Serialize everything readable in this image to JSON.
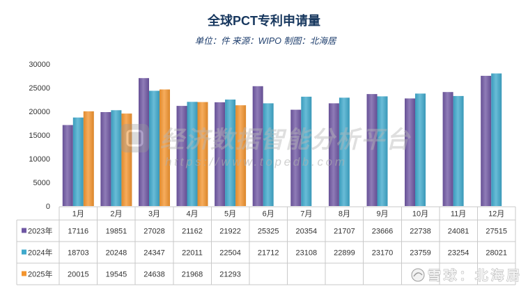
{
  "chart_data": {
    "type": "bar",
    "title": "全球PCT专利申请量",
    "subtitle": "单位：件 来源：WIPO 制图：北海居",
    "categories": [
      "1月",
      "2月",
      "3月",
      "4月",
      "5月",
      "6月",
      "7月",
      "8月",
      "9月",
      "10月",
      "11月",
      "12月"
    ],
    "series": [
      {
        "name": "2023年",
        "color": "#6f57a3",
        "values": [
          17116,
          19851,
          27028,
          21162,
          21922,
          25325,
          20354,
          21707,
          23666,
          22738,
          24081,
          27515
        ]
      },
      {
        "name": "2024年",
        "color": "#3fa9cc",
        "values": [
          18703,
          20248,
          24347,
          22011,
          22504,
          21712,
          23108,
          22899,
          23170,
          23759,
          23254,
          28021
        ]
      },
      {
        "name": "2025年",
        "color": "#f3952f",
        "values": [
          20015,
          19545,
          24638,
          21968,
          21293,
          null,
          null,
          null,
          null,
          null,
          null,
          null
        ]
      }
    ],
    "ylim": [
      0,
      30000
    ],
    "yticks": [
      0,
      5000,
      10000,
      15000,
      20000,
      25000,
      30000
    ],
    "grid": false,
    "legend": "in data table",
    "data_table": true
  },
  "watermark": {
    "platform": "经济数据智能分析平台",
    "url": "https://www.topedb.com",
    "credit": "雪球：北海居",
    "logo_icon": "topedb-logo-icon",
    "credit_icon": "xueqiu-logo-icon"
  }
}
